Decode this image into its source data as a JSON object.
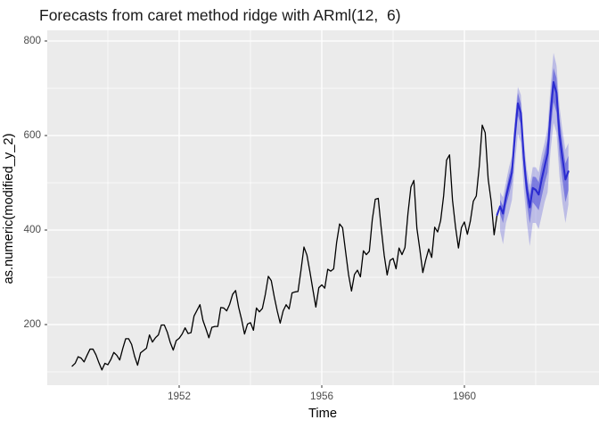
{
  "chart_data": {
    "type": "line",
    "title": "Forecasts from caret method ridge with ARml(12,  6)",
    "xlabel": "Time",
    "ylabel": "as.numeric(modified_y_2)",
    "grid": true,
    "legend_position": "none",
    "panel_bg": "#EBEBEB",
    "grid_color": "#FFFFFF",
    "xlim": [
      1948.3,
      1963.775
    ],
    "ylim": [
      71.7,
      822.6
    ],
    "x_ticks": {
      "values": [
        1952,
        1956,
        1960
      ],
      "labels": [
        "1952",
        "1956",
        "1960"
      ]
    },
    "x_minor": [
      1950,
      1954,
      1958,
      1962
    ],
    "y_ticks": {
      "values": [
        200,
        400,
        600,
        800
      ],
      "labels": [
        "200",
        "400",
        "600",
        "800"
      ]
    },
    "y_minor": [
      100,
      300,
      500,
      700
    ],
    "series": [
      {
        "name": "observed",
        "color": "#000000",
        "width": 1.3,
        "x_start": 1949.0,
        "x_step": 0.0833333,
        "values": [
          112,
          118,
          132,
          129,
          121,
          135,
          148,
          148,
          136,
          119,
          104,
          118,
          115,
          126,
          141,
          135,
          125,
          149,
          170,
          170,
          158,
          133,
          114,
          140,
          145,
          150,
          178,
          163,
          172,
          178,
          199,
          199,
          184,
          162,
          146,
          166,
          171,
          180,
          193,
          181,
          183,
          218,
          230,
          242,
          209,
          191,
          172,
          194,
          196,
          196,
          236,
          235,
          229,
          243,
          264,
          272,
          237,
          211,
          180,
          201,
          204,
          188,
          235,
          227,
          234,
          264,
          302,
          293,
          259,
          229,
          203,
          229,
          242,
          233,
          267,
          269,
          270,
          315,
          364,
          347,
          312,
          274,
          237,
          278,
          284,
          277,
          317,
          313,
          318,
          374,
          413,
          405,
          355,
          306,
          271,
          306,
          315,
          301,
          356,
          348,
          355,
          422,
          465,
          467,
          404,
          347,
          305,
          336,
          340,
          318,
          362,
          348,
          363,
          435,
          491,
          505,
          404,
          359,
          310,
          337,
          360,
          342,
          406,
          396,
          420,
          472,
          548,
          559,
          463,
          407,
          362,
          405,
          417,
          391,
          419,
          461,
          472,
          535,
          622,
          606,
          508,
          461,
          390,
          432
        ]
      },
      {
        "name": "forecast-mean",
        "color": "#2B2BD0",
        "width": 2.1,
        "x_start": 1961.0,
        "x_step": 0.0833333,
        "connect_from": {
          "x": 1960.9167,
          "value": 432
        },
        "values": [
          450,
          435,
          470,
          497,
          522,
          602,
          668,
          648,
          552,
          487,
          448,
          489,
          485,
          475,
          507,
          535,
          562,
          648,
          713,
          690,
          602,
          552,
          507,
          524
        ]
      }
    ],
    "ribbons": [
      {
        "name": "interval-95",
        "level": "95%",
        "fill": "rgba(70,70,215,0.28)",
        "x_start": 1961.0,
        "x_step": 0.0833333,
        "upper": [
          480,
          469,
          502,
          533,
          556,
          638,
          703,
          686,
          592,
          529,
          494,
          533,
          533,
          522,
          559,
          585,
          616,
          705,
          775,
          748,
          662,
          611,
          570,
          584
        ],
        "lower": [
          398,
          370,
          415,
          437,
          464,
          540,
          604,
          585,
          486,
          417,
          366,
          415,
          415,
          402,
          430,
          459,
          480,
          568,
          627,
          606,
          514,
          457,
          415,
          454
        ]
      },
      {
        "name": "interval-80",
        "level": "80%",
        "fill": "rgba(70,70,215,0.55)",
        "x_start": 1961.0,
        "x_step": 0.0833333,
        "upper": [
          464,
          451,
          485,
          515,
          539,
          622,
          690,
          668,
          575,
          509,
          474,
          513,
          512,
          501,
          536,
          563,
          592,
          679,
          743,
          722,
          635,
          584,
          541,
          557
        ],
        "lower": [
          434,
          415,
          452,
          475,
          501,
          577,
          642,
          624,
          524,
          457,
          414,
          459,
          451,
          442,
          470,
          499,
          522,
          609,
          671,
          649,
          558,
          506,
          459,
          484
        ]
      }
    ]
  }
}
